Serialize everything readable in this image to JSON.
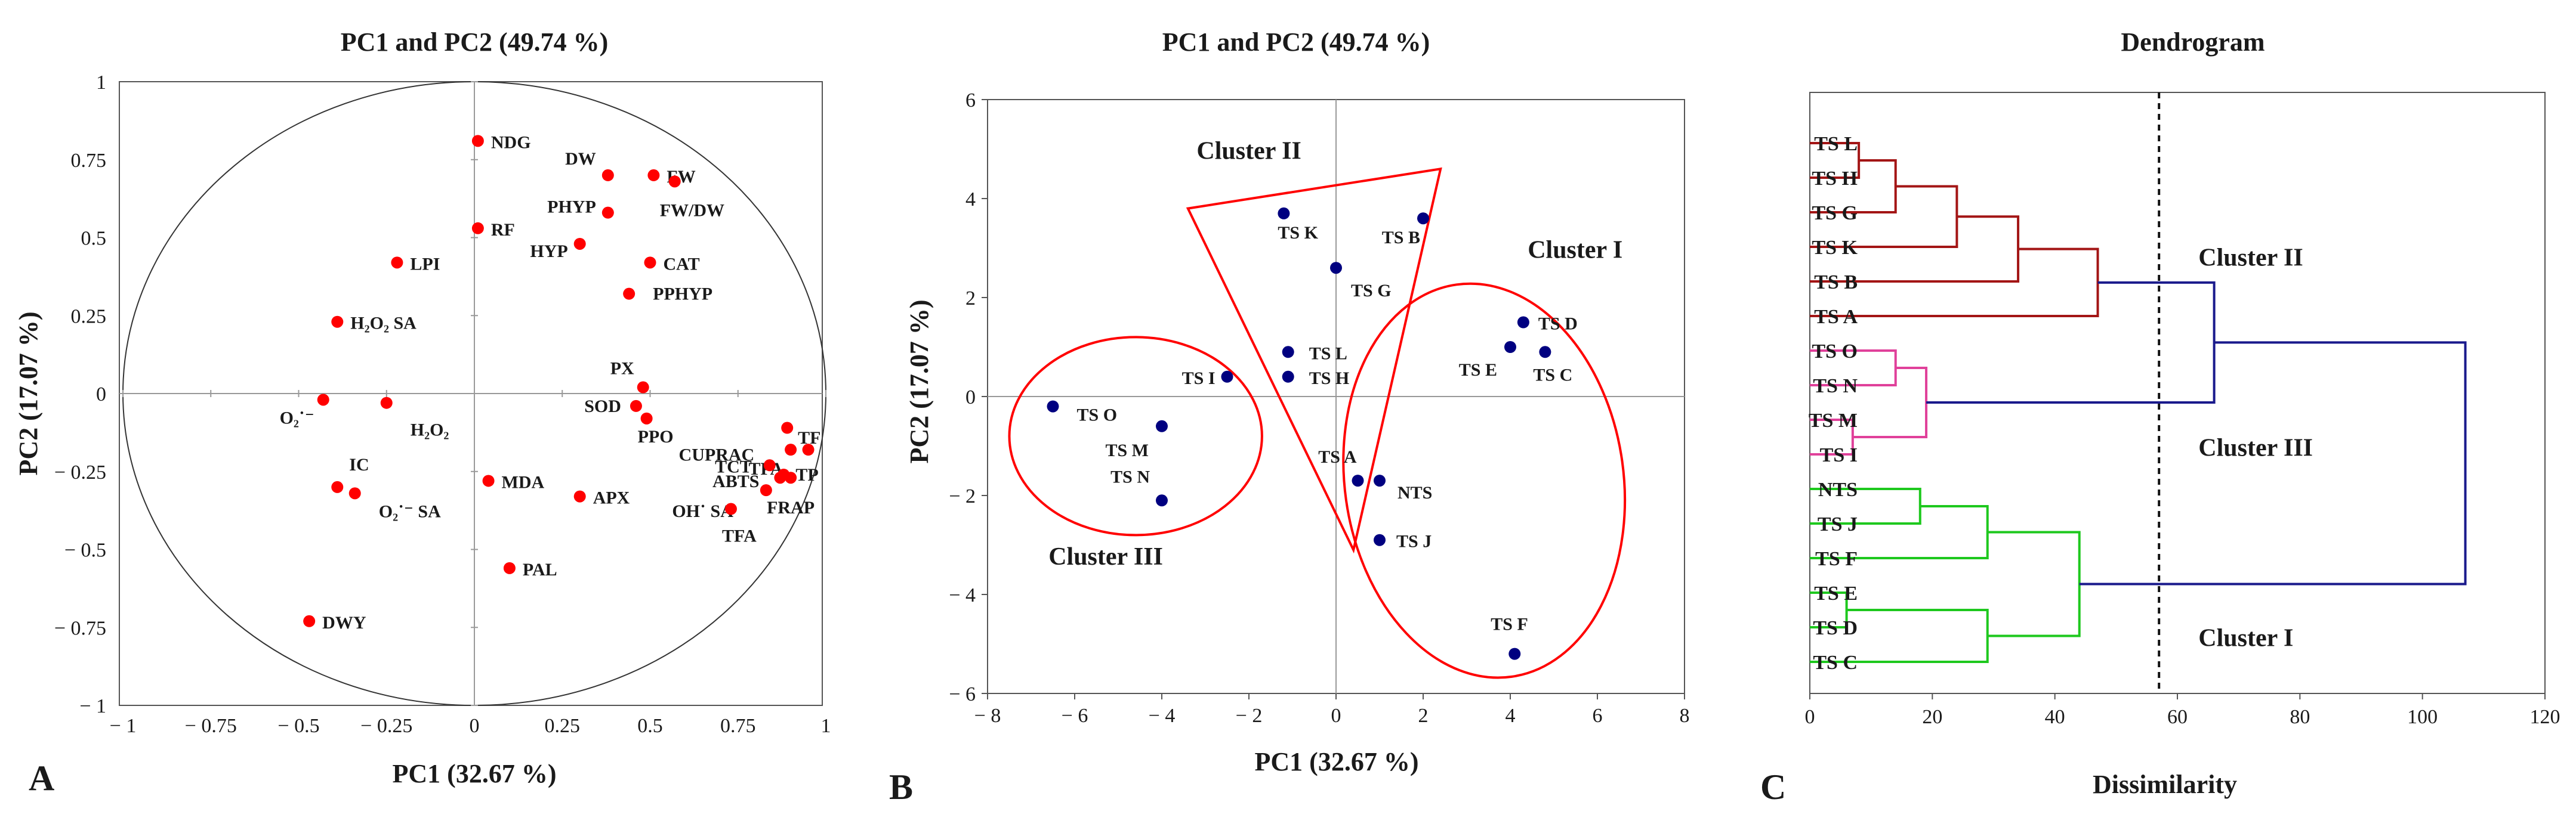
{
  "panels": {
    "A": {
      "letter": "A"
    },
    "B": {
      "letter": "B"
    },
    "C": {
      "letter": "C"
    }
  },
  "colors": {
    "red": "#ff0000",
    "navy": "#000080",
    "maroon": "#a31515",
    "pink": "#e0409a",
    "green": "#1ec81e",
    "blue": "#1a1a8c",
    "frame": "#555555",
    "axis": "#999999"
  },
  "chart_data": [
    {
      "id": "A",
      "type": "scatter",
      "title": "PC1 and PC2 (49.74 %)",
      "xlabel": "PC1 (32.67 %)",
      "ylabel": "PC2 (17.07 %)",
      "xlim": [
        -1,
        1
      ],
      "ylim": [
        -1,
        1
      ],
      "xticks": [
        "− 1",
        "− 0.75",
        "− 0.5",
        "− 0.25",
        "0",
        "0.25",
        "0.5",
        "0.75",
        "1"
      ],
      "xtick_values": [
        -1,
        -0.75,
        -0.5,
        -0.25,
        0,
        0.25,
        0.5,
        0.75,
        1
      ],
      "yticks": [
        "1",
        "0.75",
        "0.5",
        "0.25",
        "0",
        "− 0.25",
        "− 0.5",
        "− 0.75",
        "− 1"
      ],
      "ytick_values": [
        1,
        0.75,
        0.5,
        0.25,
        0,
        -0.25,
        -0.5,
        -0.75,
        -1
      ],
      "circle": "unit correlation circle",
      "points": [
        {
          "label": "NDG",
          "x": 0.01,
          "y": 0.81
        },
        {
          "label": "DW",
          "x": 0.38,
          "y": 0.7
        },
        {
          "label": "FW",
          "x": 0.51,
          "y": 0.7
        },
        {
          "label": "FW/DW",
          "x": 0.57,
          "y": 0.68
        },
        {
          "label": "PHYP",
          "x": 0.38,
          "y": 0.58
        },
        {
          "label": "RF",
          "x": 0.01,
          "y": 0.53
        },
        {
          "label": "HYP",
          "x": 0.3,
          "y": 0.48
        },
        {
          "label": "CAT",
          "x": 0.5,
          "y": 0.42
        },
        {
          "label": "PPHYP",
          "x": 0.44,
          "y": 0.32
        },
        {
          "label": "LPI",
          "x": -0.22,
          "y": 0.42
        },
        {
          "label": "H₂O₂ SA",
          "x": -0.39,
          "y": 0.23
        },
        {
          "label": "PX",
          "x": 0.48,
          "y": 0.02
        },
        {
          "label": "SOD",
          "x": 0.46,
          "y": -0.04
        },
        {
          "label": "PPO",
          "x": 0.49,
          "y": -0.08
        },
        {
          "label": "CUPRAC",
          "x": 0.89,
          "y": -0.11
        },
        {
          "label": "TF",
          "x": 0.9,
          "y": -0.18
        },
        {
          "label": "TPA",
          "x": 0.95,
          "y": -0.18
        },
        {
          "label": "TP",
          "x": 0.88,
          "y": -0.26
        },
        {
          "label": "TCT",
          "x": 0.84,
          "y": -0.23
        },
        {
          "label": "ABTS",
          "x": 0.87,
          "y": -0.27
        },
        {
          "label": "FRAP",
          "x": 0.9,
          "y": -0.27
        },
        {
          "label": "OH˙ SA",
          "x": 0.83,
          "y": -0.31
        },
        {
          "label": "TFA",
          "x": 0.73,
          "y": -0.37
        },
        {
          "label": "O₂˙⁻",
          "x": -0.43,
          "y": -0.02
        },
        {
          "label": "H₂O₂",
          "x": -0.25,
          "y": -0.03
        },
        {
          "label": "IC",
          "x": -0.39,
          "y": -0.3
        },
        {
          "label": "O₂˙⁻ SA",
          "x": -0.34,
          "y": -0.32
        },
        {
          "label": "MDA",
          "x": 0.04,
          "y": -0.28
        },
        {
          "label": "APX",
          "x": 0.3,
          "y": -0.33
        },
        {
          "label": "PAL",
          "x": 0.1,
          "y": -0.56
        },
        {
          "label": "DWY",
          "x": -0.47,
          "y": -0.73
        }
      ]
    },
    {
      "id": "B",
      "type": "scatter",
      "title": "PC1 and PC2 (49.74 %)",
      "xlabel": "PC1 (32.67 %)",
      "ylabel": "PC2 (17.07 %)",
      "xlim": [
        -8,
        8
      ],
      "ylim": [
        -6,
        6
      ],
      "xticks": [
        "− 8",
        "− 6",
        "− 4",
        "− 2",
        "0",
        "2",
        "4",
        "6",
        "8"
      ],
      "xtick_values": [
        -8,
        -6,
        -4,
        -2,
        0,
        2,
        4,
        6,
        8
      ],
      "yticks": [
        "6",
        "4",
        "2",
        "0",
        "− 2",
        "− 4",
        "− 6"
      ],
      "ytick_values": [
        6,
        4,
        2,
        0,
        -2,
        -4,
        -6
      ],
      "points": [
        {
          "label": "TS K",
          "x": -1.2,
          "y": 3.7
        },
        {
          "label": "TS B",
          "x": 2.0,
          "y": 3.6
        },
        {
          "label": "TS G",
          "x": 0.0,
          "y": 2.6
        },
        {
          "label": "TS L",
          "x": -1.1,
          "y": 0.9
        },
        {
          "label": "TS H",
          "x": -1.1,
          "y": 0.4
        },
        {
          "label": "TS I",
          "x": -2.5,
          "y": 0.4
        },
        {
          "label": "TS O",
          "x": -6.5,
          "y": -0.2
        },
        {
          "label": "TS M",
          "x": -4.0,
          "y": -0.6
        },
        {
          "label": "TS N",
          "x": -4.0,
          "y": -2.1
        },
        {
          "label": "TS D",
          "x": 4.3,
          "y": 1.5
        },
        {
          "label": "TS E",
          "x": 4.0,
          "y": 1.0
        },
        {
          "label": "TS C",
          "x": 4.8,
          "y": 0.9
        },
        {
          "label": "TS A",
          "x": 0.5,
          "y": -1.7
        },
        {
          "label": "NTS",
          "x": 1.0,
          "y": -1.7
        },
        {
          "label": "TS J",
          "x": 1.0,
          "y": -2.9
        },
        {
          "label": "TS F",
          "x": 4.1,
          "y": -5.2
        }
      ],
      "clusters": [
        {
          "label": "Cluster I",
          "shape": "ellipse",
          "center": [
            3.4,
            -1.7
          ],
          "radii": [
            3.2,
            4.0
          ],
          "angle": 8
        },
        {
          "label": "Cluster II",
          "shape": "triangle",
          "vertices": [
            [
              -3.4,
              3.8
            ],
            [
              2.4,
              4.6
            ],
            [
              0.4,
              -3.1
            ]
          ]
        },
        {
          "label": "Cluster III",
          "shape": "ellipse",
          "center": [
            -4.6,
            -0.8
          ],
          "radii": [
            2.9,
            2.0
          ],
          "angle": 0
        }
      ],
      "cluster_labels": [
        {
          "label": "Cluster II",
          "x": -3.2,
          "y": 4.8
        },
        {
          "label": "Cluster I",
          "x": 4.4,
          "y": 2.8
        },
        {
          "label": "Cluster III",
          "x": -6.6,
          "y": -3.4
        }
      ]
    },
    {
      "id": "C",
      "type": "dendrogram",
      "title": "Dendrogram",
      "xlabel": "Dissimilarity",
      "xlim": [
        0,
        120
      ],
      "xticks": [
        "0",
        "20",
        "40",
        "60",
        "80",
        "100",
        "120"
      ],
      "xtick_values": [
        0,
        20,
        40,
        60,
        80,
        100,
        120
      ],
      "cut_line": 57,
      "leaves": [
        "TS L",
        "TS H",
        "TS G",
        "TS K",
        "TS B",
        "TS A",
        "TS O",
        "TS N",
        "TS M",
        "TS I",
        "NTS",
        "TS J",
        "TS F",
        "TS E",
        "TS D",
        "TS C"
      ],
      "merges": [
        {
          "a": 0,
          "b": 1,
          "height": 8,
          "color": "maroon"
        },
        {
          "a": 16,
          "b": 2,
          "height": 14,
          "color": "maroon"
        },
        {
          "a": 17,
          "b": 3,
          "height": 24,
          "color": "maroon"
        },
        {
          "a": 18,
          "b": 4,
          "height": 34,
          "color": "maroon"
        },
        {
          "a": 19,
          "b": 5,
          "height": 47,
          "color": "maroon"
        },
        {
          "a": 6,
          "b": 7,
          "height": 14,
          "color": "pink"
        },
        {
          "a": 8,
          "b": 9,
          "height": 7,
          "color": "pink"
        },
        {
          "a": 21,
          "b": 22,
          "height": 19,
          "color": "pink"
        },
        {
          "a": 10,
          "b": 11,
          "height": 18,
          "color": "green"
        },
        {
          "a": 24,
          "b": 12,
          "height": 29,
          "color": "green"
        },
        {
          "a": 13,
          "b": 14,
          "height": 6,
          "color": "green"
        },
        {
          "a": 26,
          "b": 15,
          "height": 29,
          "color": "green"
        },
        {
          "a": 25,
          "b": 27,
          "height": 44,
          "color": "green"
        },
        {
          "a": 20,
          "b": 23,
          "height": 66,
          "color": "blue"
        },
        {
          "a": 29,
          "b": 28,
          "height": 107,
          "color": "blue"
        }
      ],
      "cluster_labels": [
        {
          "label": "Cluster II",
          "x": 61,
          "leafpos": 3.3
        },
        {
          "label": "Cluster III",
          "x": 61,
          "leafpos": 8.8
        },
        {
          "label": "Cluster I",
          "x": 61,
          "leafpos": 14.3
        }
      ]
    }
  ]
}
